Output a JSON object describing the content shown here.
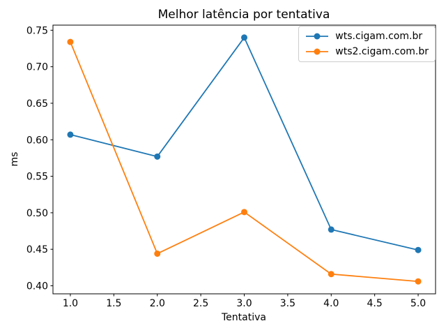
{
  "chart_data": {
    "type": "line",
    "title": "Melhor latência por tentativa",
    "xlabel": "Tentativa",
    "ylabel": "ms",
    "x": [
      1,
      2,
      3,
      4,
      5
    ],
    "series": [
      {
        "name": "wts.cigam.com.br",
        "color": "#1f77b4",
        "marker": "o",
        "values": [
          0.607,
          0.577,
          0.74,
          0.477,
          0.449
        ]
      },
      {
        "name": "wts2.cigam.com.br",
        "color": "#ff7f0e",
        "marker": "o",
        "values": [
          0.734,
          0.444,
          0.501,
          0.416,
          0.406
        ]
      }
    ],
    "xlim": [
      0.8,
      5.2
    ],
    "ylim": [
      0.389,
      0.757
    ],
    "xtick_values": [
      1.0,
      1.5,
      2.0,
      2.5,
      3.0,
      3.5,
      4.0,
      4.5,
      5.0
    ],
    "xtick_labels": [
      "1.0",
      "1.5",
      "2.0",
      "2.5",
      "3.0",
      "3.5",
      "4.0",
      "4.5",
      "5.0"
    ],
    "ytick_values": [
      0.4,
      0.45,
      0.5,
      0.55,
      0.6,
      0.65,
      0.7,
      0.75
    ],
    "ytick_labels": [
      "0.40",
      "0.45",
      "0.50",
      "0.55",
      "0.60",
      "0.65",
      "0.70",
      "0.75"
    ],
    "grid": false,
    "legend_position": "upper right",
    "legend_entries": [
      "wts.cigam.com.br",
      "wts2.cigam.com.br"
    ]
  }
}
